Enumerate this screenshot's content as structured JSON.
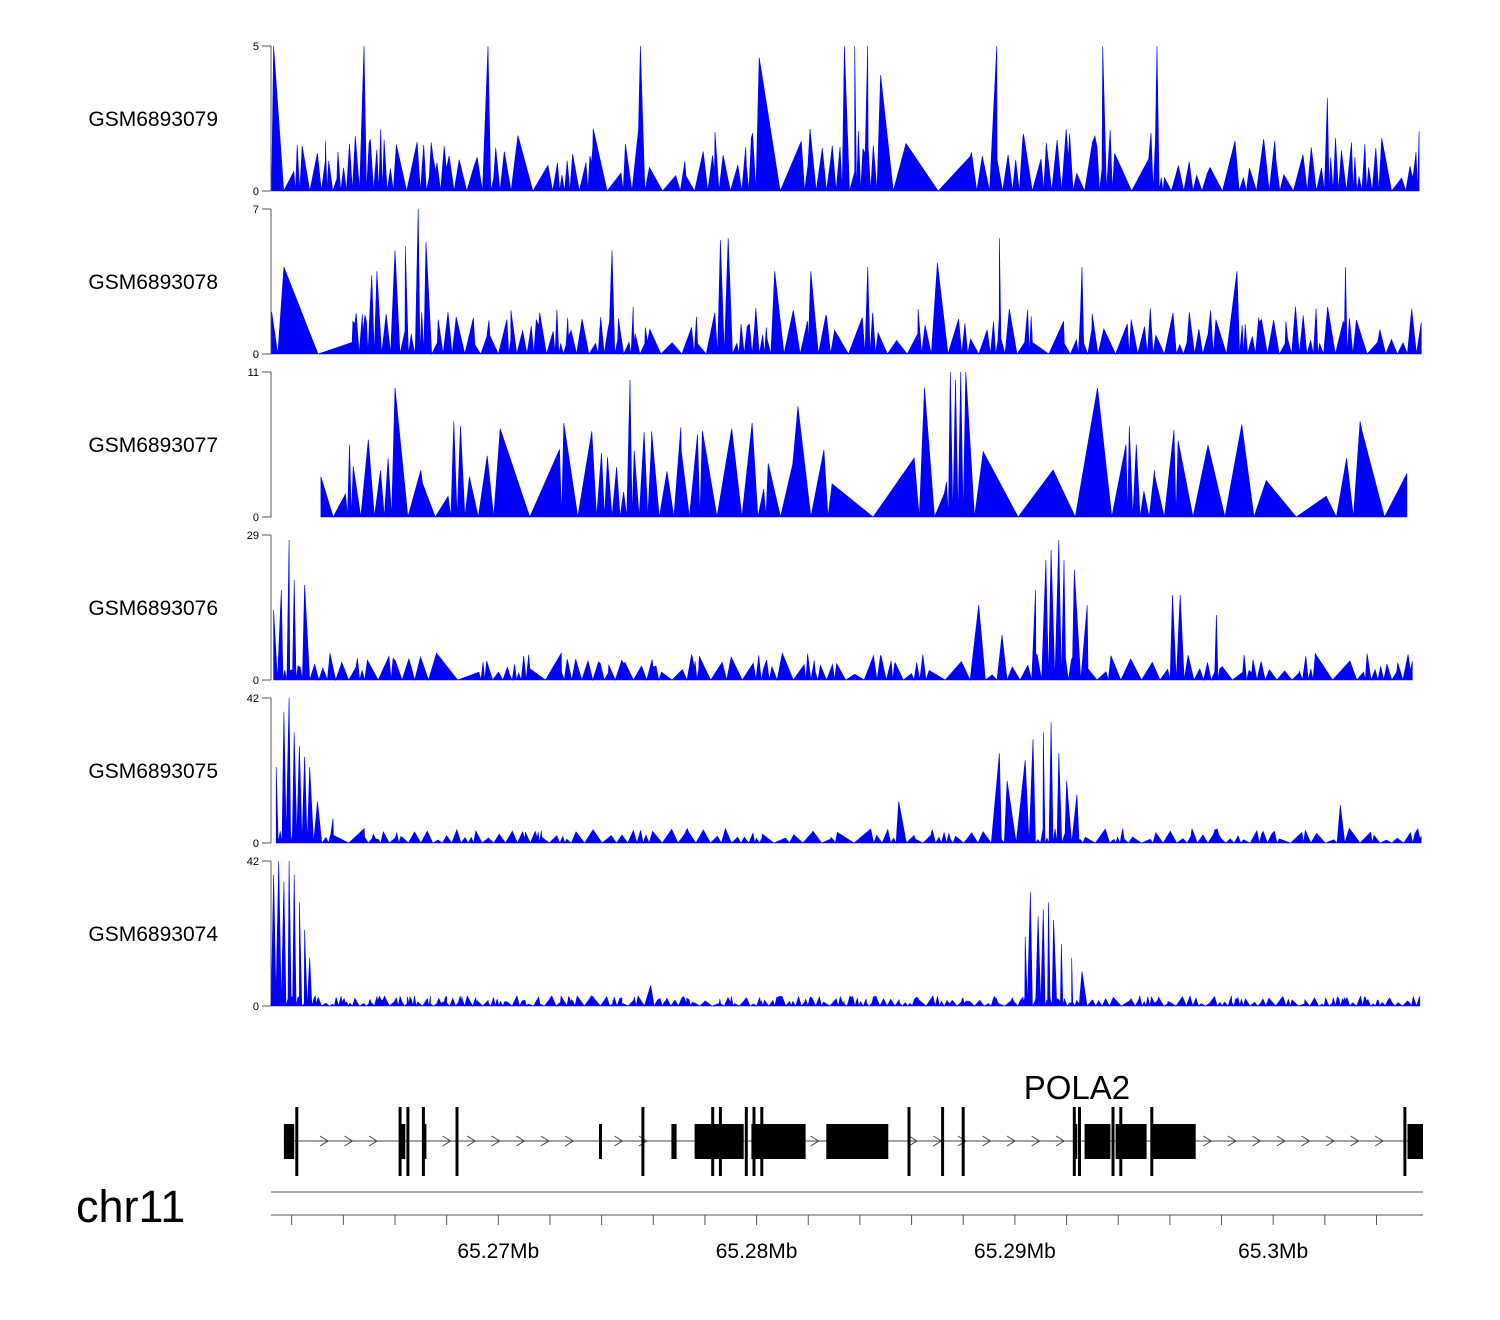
{
  "chart_data": {
    "type": "area",
    "title": "",
    "chromosome": "chr11",
    "x_range_mb": [
      65.2612,
      65.3058
    ],
    "series_color": "#0000ff",
    "tracks": [
      {
        "name": "GSM6893079",
        "ymin": 0,
        "ymax": 5,
        "ymax_label": "5",
        "ymin_label": "0",
        "seed": 11,
        "density": 150,
        "peaks": [
          [
            65.2613,
            5
          ],
          [
            65.2648,
            5
          ],
          [
            65.2696,
            5
          ],
          [
            65.2755,
            5
          ],
          [
            65.2834,
            5
          ],
          [
            65.2838,
            5
          ],
          [
            65.2843,
            5
          ],
          [
            65.2893,
            5
          ],
          [
            65.2934,
            5
          ],
          [
            65.2955,
            5
          ],
          [
            65.2801,
            4.6
          ],
          [
            65.2848,
            4
          ],
          [
            65.3021,
            3.2
          ]
        ],
        "background": 1.6,
        "gaps": [
          [
            65.2858,
            65.288
          ],
          [
            65.3005,
            65.301
          ]
        ]
      },
      {
        "name": "GSM6893078",
        "ymin": 0,
        "ymax": 7,
        "ymax_label": "7",
        "ymin_label": "0",
        "seed": 23,
        "density": 160,
        "peaks": [
          [
            65.2617,
            4.2
          ],
          [
            65.2651,
            3.8
          ],
          [
            65.2653,
            4.0
          ],
          [
            65.266,
            5.0
          ],
          [
            65.2664,
            5.2
          ],
          [
            65.2669,
            7
          ],
          [
            65.2672,
            5.4
          ],
          [
            65.2744,
            5.0
          ],
          [
            65.2786,
            5.5
          ],
          [
            65.2789,
            5.6
          ],
          [
            65.2807,
            4.0
          ],
          [
            65.2821,
            4.0
          ],
          [
            65.2843,
            4.2
          ],
          [
            65.287,
            4.4
          ],
          [
            65.2894,
            5.6
          ],
          [
            65.2926,
            4.2
          ],
          [
            65.2986,
            4.0
          ],
          [
            65.3028,
            4.2
          ]
        ],
        "background": 1.7,
        "gaps": [
          [
            65.2618,
            65.264
          ]
        ]
      },
      {
        "name": "GSM6893077",
        "ymin": 0,
        "ymax": 11,
        "ymax_label": "11",
        "ymin_label": "0",
        "seed": 37,
        "density": 60,
        "peaks": [
          [
            65.266,
            9.8
          ],
          [
            65.2751,
            10.4
          ],
          [
            65.2816,
            8.4
          ],
          [
            65.2865,
            9.8
          ],
          [
            65.2875,
            11
          ],
          [
            65.2877,
            10.4
          ],
          [
            65.2879,
            11
          ],
          [
            65.2881,
            11
          ],
          [
            65.2932,
            9.8
          ],
          [
            65.2943,
            5.5
          ],
          [
            65.2947,
            5.5
          ]
        ],
        "background": 5.4,
        "gaps": [
          [
            65.2612,
            65.2628
          ]
        ]
      },
      {
        "name": "GSM6893076",
        "ymin": 0,
        "ymax": 29,
        "ymax_label": "29",
        "ymin_label": "0",
        "seed": 41,
        "density": 130,
        "peaks": [
          [
            65.2613,
            14
          ],
          [
            65.2616,
            18
          ],
          [
            65.2619,
            28
          ],
          [
            65.2621,
            20
          ],
          [
            65.2625,
            19
          ],
          [
            65.2848,
            5
          ],
          [
            65.2886,
            15
          ],
          [
            65.2895,
            9
          ],
          [
            65.2908,
            18
          ],
          [
            65.2912,
            24
          ],
          [
            65.2914,
            26
          ],
          [
            65.2917,
            28
          ],
          [
            65.2919,
            24
          ],
          [
            65.2923,
            22
          ],
          [
            65.2928,
            15
          ],
          [
            65.2961,
            17
          ],
          [
            65.2964,
            17
          ],
          [
            65.2978,
            13
          ]
        ],
        "background": 4.0,
        "gaps": []
      },
      {
        "name": "GSM6893075",
        "ymin": 0,
        "ymax": 42,
        "ymax_label": "42",
        "ymin_label": "0",
        "seed": 53,
        "density": 140,
        "peaks": [
          [
            65.2614,
            22
          ],
          [
            65.2617,
            38
          ],
          [
            65.2619,
            42
          ],
          [
            65.2621,
            32
          ],
          [
            65.2623,
            28
          ],
          [
            65.2625,
            25
          ],
          [
            65.2627,
            22
          ],
          [
            65.263,
            12
          ],
          [
            65.2636,
            7
          ],
          [
            65.2855,
            12
          ],
          [
            65.2894,
            26
          ],
          [
            65.2897,
            18
          ],
          [
            65.2904,
            24
          ],
          [
            65.2907,
            30
          ],
          [
            65.2911,
            32
          ],
          [
            65.2914,
            35
          ],
          [
            65.2917,
            26
          ],
          [
            65.292,
            18
          ],
          [
            65.2924,
            14
          ],
          [
            65.3026,
            11
          ]
        ],
        "background": 3.2,
        "gaps": []
      },
      {
        "name": "GSM6893074",
        "ymin": 0,
        "ymax": 42,
        "ymax_label": "42",
        "ymin_label": "0",
        "seed": 67,
        "density": 320,
        "peaks": [
          [
            65.2613,
            38
          ],
          [
            65.2615,
            42
          ],
          [
            65.2617,
            36
          ],
          [
            65.2619,
            42
          ],
          [
            65.2621,
            38
          ],
          [
            65.2623,
            30
          ],
          [
            65.2625,
            22
          ],
          [
            65.2627,
            14
          ],
          [
            65.2904,
            20
          ],
          [
            65.2906,
            33
          ],
          [
            65.2909,
            26
          ],
          [
            65.2911,
            28
          ],
          [
            65.2913,
            30
          ],
          [
            65.2915,
            25
          ],
          [
            65.2918,
            18
          ],
          [
            65.2922,
            14
          ],
          [
            65.2926,
            10
          ],
          [
            65.2759,
            6
          ]
        ],
        "background": 2.2,
        "gaps": []
      }
    ],
    "gene": {
      "name": "POLA2",
      "strand": "+",
      "start_mb": 65.2617,
      "end_mb": 65.3058,
      "exons_mb": [
        [
          65.2617,
          65.2621
        ],
        [
          65.2662,
          65.2664
        ],
        [
          65.2671,
          65.2672
        ],
        [
          65.2739,
          65.274
        ],
        [
          65.2767,
          65.2769
        ],
        [
          65.2776,
          65.2795
        ],
        [
          65.2798,
          65.2819
        ],
        [
          65.2827,
          65.2851
        ],
        [
          65.2923,
          65.2924
        ],
        [
          65.2927,
          65.2937
        ],
        [
          65.2939,
          65.2951
        ],
        [
          65.2953,
          65.297
        ],
        [
          65.3052,
          65.3058
        ]
      ],
      "junctions_mb": [
        65.2622,
        65.2662,
        65.2665,
        65.2671,
        65.2684,
        65.2756,
        65.2783,
        65.2786,
        65.2796,
        65.2799,
        65.2802,
        65.2859,
        65.2872,
        65.288,
        65.2923,
        65.2925,
        65.2938,
        65.2941,
        65.2953,
        65.3051
      ]
    },
    "axis": {
      "ticks_mb": [
        65.262,
        65.264,
        65.266,
        65.268,
        65.27,
        65.272,
        65.274,
        65.276,
        65.278,
        65.28,
        65.282,
        65.284,
        65.286,
        65.288,
        65.29,
        65.292,
        65.294,
        65.296,
        65.298,
        65.3,
        65.302,
        65.304
      ],
      "labels": [
        {
          "mb": 65.27,
          "text": "65.27Mb"
        },
        {
          "mb": 65.28,
          "text": "65.28Mb"
        },
        {
          "mb": 65.29,
          "text": "65.29Mb"
        },
        {
          "mb": 65.3,
          "text": "65.3Mb"
        }
      ]
    }
  }
}
